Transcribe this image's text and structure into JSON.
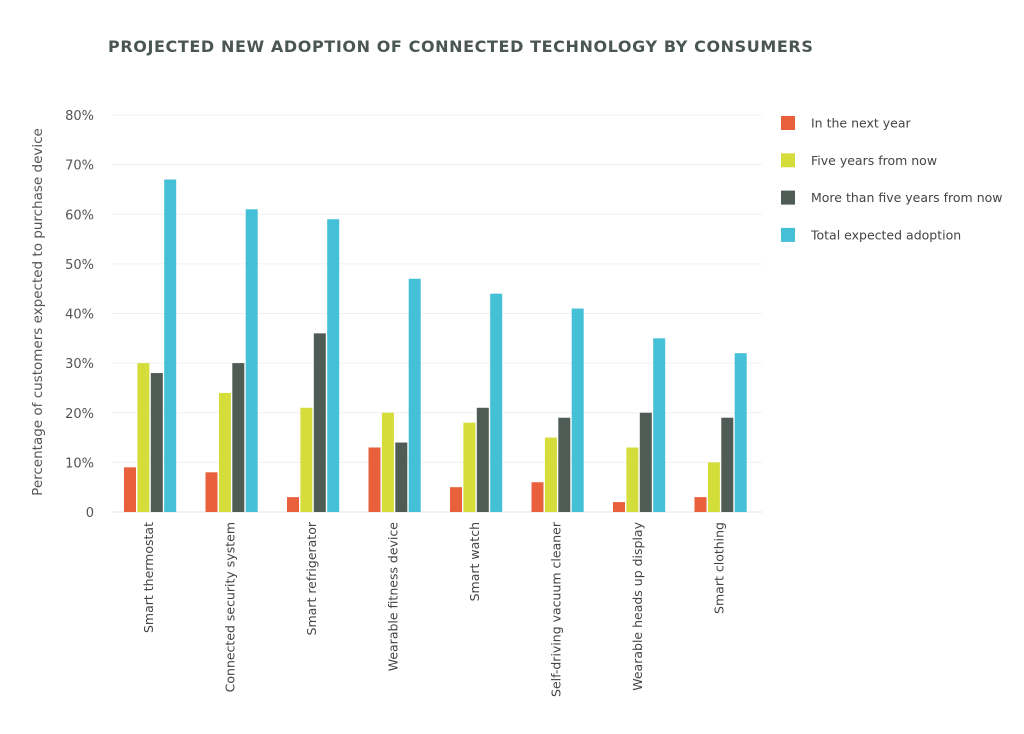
{
  "chart_data": {
    "type": "bar",
    "title": "PROJECTED NEW ADOPTION OF CONNECTED TECHNOLOGY BY CONSUMERS",
    "xlabel": "",
    "ylabel": "Percentage of customers expected to purchase device",
    "ylim": [
      0,
      80
    ],
    "yticks": [
      "0",
      "10%",
      "20%",
      "30%",
      "40%",
      "50%",
      "60%",
      "70%",
      "80%"
    ],
    "grid": true,
    "legend_position": "right",
    "categories": [
      "Smart thermostat",
      "Connected security system",
      "Smart refrigerator",
      "Wearable fitness device",
      "Smart watch",
      "Self-driving vacuum cleaner",
      "Wearable heads up display",
      "Smart clothing"
    ],
    "series": [
      {
        "name": "In the next year",
        "color": "#e8603c",
        "values": [
          9,
          8,
          3,
          13,
          5,
          6,
          2,
          3
        ]
      },
      {
        "name": "Five years from now",
        "color": "#d4dd3a",
        "values": [
          30,
          24,
          21,
          20,
          18,
          15,
          13,
          10
        ]
      },
      {
        "name": "More than five years from now",
        "color": "#4e5c55",
        "values": [
          28,
          30,
          36,
          14,
          21,
          19,
          20,
          19
        ]
      },
      {
        "name": "Total expected adoption",
        "color": "#44c1d6",
        "values": [
          67,
          61,
          59,
          47,
          44,
          41,
          35,
          32
        ]
      }
    ]
  }
}
